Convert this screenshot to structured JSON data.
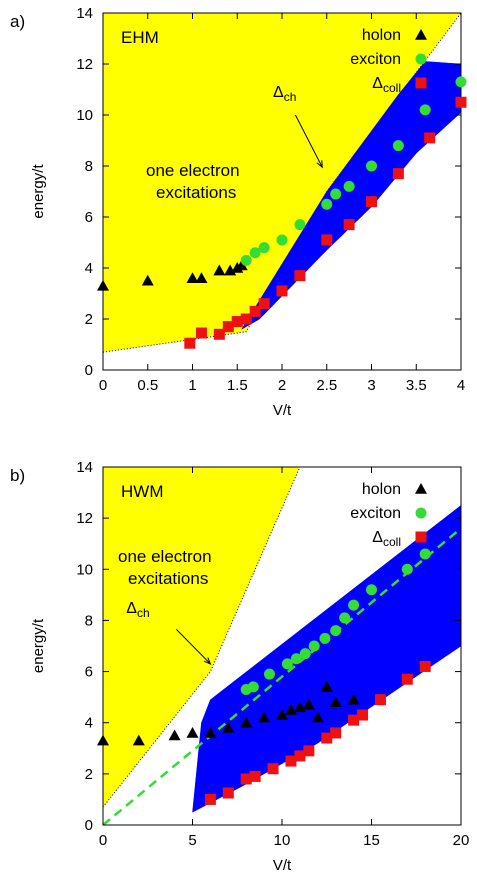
{
  "chart_data": [
    {
      "type": "scatter",
      "panel_label": "a)",
      "model_label": "EHM",
      "xlabel": "V/t",
      "ylabel": "energy/t",
      "xlim": [
        0,
        4
      ],
      "ylim": [
        0,
        14
      ],
      "xticks": [
        "0",
        "0.5",
        "1",
        "1.5",
        "2",
        "2.5",
        "3",
        "3.5",
        "4"
      ],
      "xtick_values": [
        0,
        0.5,
        1,
        1.5,
        2,
        2.5,
        3,
        3.5,
        4
      ],
      "yticks": [
        "0",
        "2",
        "4",
        "6",
        "8",
        "10",
        "12",
        "14"
      ],
      "ytick_values": [
        0,
        2,
        4,
        6,
        8,
        10,
        12,
        14
      ],
      "legend_position": "top-right",
      "legend": [
        {
          "label": "holon",
          "marker": "triangle",
          "color": "#000000"
        },
        {
          "label": "exciton",
          "marker": "circle",
          "color": "#33dd33"
        },
        {
          "label": "Δcoll",
          "marker": "square",
          "color": "#ee1111"
        }
      ],
      "region_text": [
        "one electron",
        "excitations"
      ],
      "annotation": "Δch",
      "yellow_region_upper": [
        [
          0,
          14
        ],
        [
          1.95,
          14
        ],
        [
          4,
          14
        ]
      ],
      "yellow_region_boundary": [
        [
          0,
          0.7
        ],
        [
          1.6,
          1.5
        ],
        [
          2.5,
          7.0
        ],
        [
          4,
          14
        ]
      ],
      "blue_band_upper": [
        [
          1.55,
          1.6
        ],
        [
          2.5,
          7.0
        ],
        [
          2.9,
          8.9
        ],
        [
          3.3,
          10.8
        ],
        [
          3.6,
          12.1
        ],
        [
          4,
          12.0
        ]
      ],
      "blue_band_lower": [
        [
          4,
          10.1
        ],
        [
          3.5,
          8.5
        ],
        [
          3.0,
          6.4
        ],
        [
          2.5,
          4.7
        ],
        [
          2.0,
          2.9
        ],
        [
          1.75,
          2.0
        ],
        [
          1.55,
          1.6
        ]
      ],
      "series": [
        {
          "name": "holon",
          "x": [
            0,
            0.5,
            1.0,
            1.1,
            1.3,
            1.42,
            1.5,
            1.55
          ],
          "y": [
            3.3,
            3.5,
            3.6,
            3.6,
            3.9,
            3.9,
            4.0,
            4.1
          ]
        },
        {
          "name": "exciton",
          "x": [
            1.6,
            1.7,
            1.8,
            2.0,
            2.2,
            2.5,
            2.6,
            2.75,
            3.0,
            3.3,
            3.6,
            4.0
          ],
          "y": [
            4.3,
            4.6,
            4.8,
            5.1,
            5.7,
            6.5,
            6.9,
            7.2,
            8.0,
            8.8,
            10.2,
            11.3
          ]
        },
        {
          "name": "Δcoll",
          "x": [
            0.97,
            1.1,
            1.3,
            1.4,
            1.5,
            1.6,
            1.7,
            1.8,
            2.0,
            2.2,
            2.5,
            2.75,
            3.0,
            3.3,
            3.65,
            4.0
          ],
          "y": [
            1.05,
            1.45,
            1.4,
            1.7,
            1.9,
            2.0,
            2.3,
            2.6,
            3.1,
            3.7,
            5.1,
            5.7,
            6.6,
            7.7,
            9.1,
            10.5
          ]
        }
      ]
    },
    {
      "type": "scatter",
      "panel_label": "b)",
      "model_label": "HWM",
      "xlabel": "V/t",
      "ylabel": "energy/t",
      "xlim": [
        0,
        20
      ],
      "ylim": [
        0,
        14
      ],
      "xticks": [
        "0",
        "5",
        "10",
        "15",
        "20"
      ],
      "xtick_values": [
        0,
        5,
        10,
        15,
        20
      ],
      "yticks": [
        "0",
        "2",
        "4",
        "6",
        "8",
        "10",
        "12",
        "14"
      ],
      "ytick_values": [
        0,
        2,
        4,
        6,
        8,
        10,
        12,
        14
      ],
      "legend_position": "top-right",
      "legend": [
        {
          "label": "holon",
          "marker": "triangle",
          "color": "#000000"
        },
        {
          "label": "exciton",
          "marker": "circle",
          "color": "#33dd33"
        },
        {
          "label": "Δcoll",
          "marker": "square",
          "color": "#ee1111"
        }
      ],
      "region_text": [
        "one electron",
        "excitations"
      ],
      "annotation": "Δch",
      "yellow_region_boundary": [
        [
          0,
          0.7
        ],
        [
          6,
          6.0
        ],
        [
          11,
          14
        ]
      ],
      "blue_band_upper": [
        [
          5.5,
          4.0
        ],
        [
          6.0,
          4.9
        ],
        [
          20,
          12.5
        ]
      ],
      "blue_band_lower": [
        [
          20,
          7.0
        ],
        [
          12,
          3.2
        ],
        [
          8,
          1.6
        ],
        [
          5.0,
          0.5
        ]
      ],
      "dashed_line": [
        [
          0,
          0
        ],
        [
          20,
          11.6
        ]
      ],
      "series": [
        {
          "name": "holon",
          "x": [
            0,
            2,
            4,
            5,
            6,
            7,
            8,
            9,
            10,
            10.5,
            11,
            11.5,
            12,
            12.5,
            13,
            14
          ],
          "y": [
            3.3,
            3.3,
            3.5,
            3.6,
            3.6,
            3.8,
            4.0,
            4.2,
            4.3,
            4.5,
            4.6,
            4.7,
            4.2,
            5.4,
            4.8,
            4.9
          ]
        },
        {
          "name": "exciton",
          "x": [
            8,
            8.4,
            9.3,
            10.3,
            10.8,
            11.3,
            11.8,
            12.4,
            13,
            13.5,
            14,
            15,
            17,
            18
          ],
          "y": [
            5.3,
            5.4,
            5.9,
            6.3,
            6.5,
            6.7,
            7.0,
            7.3,
            7.6,
            8.1,
            8.6,
            9.2,
            10.0,
            10.6
          ]
        },
        {
          "name": "Δcoll",
          "x": [
            6,
            7,
            8,
            8.5,
            9.5,
            10.5,
            11,
            11.5,
            12.5,
            13,
            14,
            14.5,
            15.5,
            17,
            18
          ],
          "y": [
            1.0,
            1.25,
            1.8,
            1.9,
            2.2,
            2.5,
            2.7,
            2.9,
            3.4,
            3.6,
            4.1,
            4.3,
            4.9,
            5.7,
            6.2
          ]
        }
      ]
    }
  ],
  "colors": {
    "yellow": "#ffff00",
    "blue": "#0000ff",
    "green": "#33dd33",
    "red": "#ee1111",
    "dashed": "#33dd33"
  }
}
